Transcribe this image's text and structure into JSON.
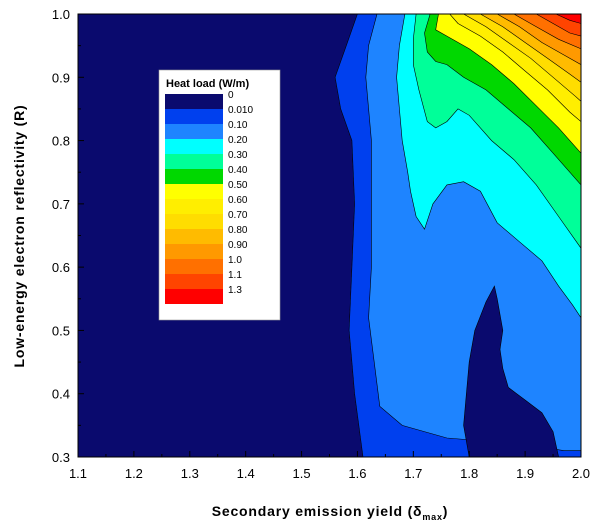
{
  "chart_data": {
    "type": "contour",
    "xlabel": "Secondary emission yield (δ",
    "xlabel_sub": "max",
    "xlabel_close": ")",
    "ylabel": "Low-energy electron reflectivity (R)",
    "xlim": [
      1.1,
      2.0
    ],
    "ylim": [
      0.3,
      1.0
    ],
    "x_ticks": [
      "1.1",
      "1.2",
      "1.3",
      "1.4",
      "1.5",
      "1.6",
      "1.7",
      "1.8",
      "1.9",
      "2.0"
    ],
    "y_ticks": [
      "0.3",
      "0.4",
      "0.5",
      "0.6",
      "0.7",
      "0.8",
      "0.9",
      "1.0"
    ],
    "legend": {
      "title": "Heat load (W/m)",
      "placement": "upper-left inside plot",
      "levels": [
        {
          "label": "0",
          "color": "#0a0a6e"
        },
        {
          "label": "0.010",
          "color": "#0040ee"
        },
        {
          "label": "0.10",
          "color": "#1e84ff"
        },
        {
          "label": "0.20",
          "color": "#00ffff"
        },
        {
          "label": "0.30",
          "color": "#00ff99"
        },
        {
          "label": "0.40",
          "color": "#00d800"
        },
        {
          "label": "0.50",
          "color": "#ffff00"
        },
        {
          "label": "0.60",
          "color": "#ffee00"
        },
        {
          "label": "0.70",
          "color": "#ffdd00"
        },
        {
          "label": "0.80",
          "color": "#ffbb00"
        },
        {
          "label": "0.90",
          "color": "#ff9900"
        },
        {
          "label": "1.0",
          "color": "#ff7000"
        },
        {
          "label": "1.1",
          "color": "#ff4400"
        },
        {
          "label": "1.3",
          "color": "#ff0000"
        }
      ]
    },
    "regions": [
      {
        "level": "0",
        "color": "#0a0a6e",
        "points": [
          [
            1.1,
            0.3
          ],
          [
            1.1,
            1.0
          ],
          [
            1.6,
            1.0
          ],
          [
            1.58,
            0.95
          ],
          [
            1.56,
            0.9
          ],
          [
            1.57,
            0.85
          ],
          [
            1.59,
            0.8
          ],
          [
            1.595,
            0.7
          ],
          [
            1.59,
            0.6
          ],
          [
            1.585,
            0.5
          ],
          [
            1.59,
            0.45
          ],
          [
            1.595,
            0.4
          ],
          [
            1.61,
            0.3
          ]
        ]
      },
      {
        "level": "0.010",
        "color": "#0040ee",
        "points": [
          [
            1.61,
            0.3
          ],
          [
            1.595,
            0.4
          ],
          [
            1.59,
            0.45
          ],
          [
            1.585,
            0.5
          ],
          [
            1.59,
            0.6
          ],
          [
            1.595,
            0.7
          ],
          [
            1.59,
            0.8
          ],
          [
            1.57,
            0.85
          ],
          [
            1.56,
            0.9
          ],
          [
            1.58,
            0.95
          ],
          [
            1.6,
            1.0
          ],
          [
            2.0,
            1.0
          ],
          [
            2.0,
            0.3
          ]
        ]
      },
      {
        "level": "0.10",
        "color": "#1e84ff",
        "points": [
          [
            1.635,
            1.0
          ],
          [
            1.62,
            0.95
          ],
          [
            1.615,
            0.9
          ],
          [
            1.62,
            0.85
          ],
          [
            1.625,
            0.8
          ],
          [
            1.625,
            0.7
          ],
          [
            1.625,
            0.6
          ],
          [
            1.62,
            0.52
          ],
          [
            1.63,
            0.45
          ],
          [
            1.64,
            0.38
          ],
          [
            1.68,
            0.35
          ],
          [
            1.76,
            0.33
          ],
          [
            1.9,
            0.32
          ],
          [
            1.97,
            0.31
          ],
          [
            2.0,
            0.31
          ],
          [
            2.0,
            1.0
          ]
        ]
      },
      {
        "level": "0",
        "color": "#0a0a6e",
        "points": [
          [
            1.8,
            0.3
          ],
          [
            1.79,
            0.35
          ],
          [
            1.795,
            0.4
          ],
          [
            1.8,
            0.45
          ],
          [
            1.81,
            0.5
          ],
          [
            1.83,
            0.545
          ],
          [
            1.845,
            0.57
          ],
          [
            1.85,
            0.55
          ],
          [
            1.86,
            0.5
          ],
          [
            1.855,
            0.47
          ],
          [
            1.86,
            0.44
          ],
          [
            1.87,
            0.41
          ],
          [
            1.885,
            0.4
          ],
          [
            1.9,
            0.39
          ],
          [
            1.93,
            0.37
          ],
          [
            1.95,
            0.34
          ],
          [
            1.96,
            0.3
          ]
        ]
      },
      {
        "level": "0.20",
        "color": "#00ffff",
        "points": [
          [
            1.685,
            1.0
          ],
          [
            1.675,
            0.95
          ],
          [
            1.67,
            0.9
          ],
          [
            1.675,
            0.85
          ],
          [
            1.68,
            0.8
          ],
          [
            1.69,
            0.75
          ],
          [
            1.695,
            0.72
          ],
          [
            1.705,
            0.68
          ],
          [
            1.72,
            0.66
          ],
          [
            1.735,
            0.7
          ],
          [
            1.76,
            0.73
          ],
          [
            1.79,
            0.735
          ],
          [
            1.82,
            0.72
          ],
          [
            1.85,
            0.67
          ],
          [
            1.89,
            0.64
          ],
          [
            1.93,
            0.61
          ],
          [
            1.96,
            0.57
          ],
          [
            1.985,
            0.54
          ],
          [
            2.0,
            0.52
          ],
          [
            2.0,
            1.0
          ]
        ]
      },
      {
        "level": "0.30",
        "color": "#00ff99",
        "points": [
          [
            1.705,
            1.0
          ],
          [
            1.7,
            0.96
          ],
          [
            1.7,
            0.92
          ],
          [
            1.71,
            0.88
          ],
          [
            1.725,
            0.83
          ],
          [
            1.74,
            0.82
          ],
          [
            1.76,
            0.83
          ],
          [
            1.78,
            0.85
          ],
          [
            1.8,
            0.84
          ],
          [
            1.84,
            0.8
          ],
          [
            1.88,
            0.77
          ],
          [
            1.92,
            0.73
          ],
          [
            1.96,
            0.68
          ],
          [
            2.0,
            0.63
          ],
          [
            2.0,
            1.0
          ]
        ]
      },
      {
        "level": "0.40",
        "color": "#00d800",
        "points": [
          [
            1.73,
            1.0
          ],
          [
            1.72,
            0.97
          ],
          [
            1.725,
            0.94
          ],
          [
            1.74,
            0.925
          ],
          [
            1.76,
            0.92
          ],
          [
            1.79,
            0.9
          ],
          [
            1.83,
            0.88
          ],
          [
            1.87,
            0.85
          ],
          [
            1.91,
            0.82
          ],
          [
            1.95,
            0.78
          ],
          [
            1.98,
            0.75
          ],
          [
            2.0,
            0.73
          ],
          [
            2.0,
            1.0
          ]
        ]
      },
      {
        "level": "0.50",
        "color": "#ffff00",
        "points": [
          [
            1.745,
            1.0
          ],
          [
            1.74,
            0.975
          ],
          [
            1.76,
            0.965
          ],
          [
            1.8,
            0.945
          ],
          [
            1.84,
            0.92
          ],
          [
            1.88,
            0.89
          ],
          [
            1.92,
            0.855
          ],
          [
            1.96,
            0.82
          ],
          [
            2.0,
            0.78
          ],
          [
            2.0,
            1.0
          ]
        ]
      },
      {
        "level": "0.60",
        "color": "#ffee00",
        "points": [
          [
            1.765,
            1.0
          ],
          [
            1.78,
            0.985
          ],
          [
            1.82,
            0.965
          ],
          [
            1.86,
            0.94
          ],
          [
            1.9,
            0.91
          ],
          [
            1.94,
            0.88
          ],
          [
            1.98,
            0.845
          ],
          [
            2.0,
            0.83
          ],
          [
            2.0,
            1.0
          ]
        ]
      },
      {
        "level": "0.70",
        "color": "#ffdd00",
        "points": [
          [
            1.79,
            1.0
          ],
          [
            1.83,
            0.98
          ],
          [
            1.87,
            0.955
          ],
          [
            1.91,
            0.93
          ],
          [
            1.95,
            0.9
          ],
          [
            1.99,
            0.87
          ],
          [
            2.0,
            0.862
          ],
          [
            2.0,
            1.0
          ]
        ]
      },
      {
        "level": "0.80",
        "color": "#ffbb00",
        "points": [
          [
            1.82,
            1.0
          ],
          [
            1.86,
            0.98
          ],
          [
            1.9,
            0.955
          ],
          [
            1.94,
            0.93
          ],
          [
            1.98,
            0.905
          ],
          [
            2.0,
            0.892
          ],
          [
            2.0,
            1.0
          ]
        ]
      },
      {
        "level": "0.90",
        "color": "#ff9900",
        "points": [
          [
            1.85,
            1.0
          ],
          [
            1.89,
            0.98
          ],
          [
            1.93,
            0.955
          ],
          [
            1.97,
            0.935
          ],
          [
            2.0,
            0.92
          ],
          [
            2.0,
            1.0
          ]
        ]
      },
      {
        "level": "1.0",
        "color": "#ff7000",
        "points": [
          [
            1.88,
            1.0
          ],
          [
            1.92,
            0.98
          ],
          [
            1.96,
            0.96
          ],
          [
            2.0,
            0.945
          ],
          [
            2.0,
            1.0
          ]
        ]
      },
      {
        "level": "1.1",
        "color": "#ff4400",
        "points": [
          [
            1.92,
            1.0
          ],
          [
            1.95,
            0.985
          ],
          [
            1.98,
            0.97
          ],
          [
            2.0,
            0.965
          ],
          [
            2.0,
            1.0
          ]
        ]
      },
      {
        "level": "1.3",
        "color": "#ff0000",
        "points": [
          [
            1.955,
            1.0
          ],
          [
            1.98,
            0.99
          ],
          [
            2.0,
            0.985
          ],
          [
            2.0,
            1.0
          ]
        ]
      }
    ]
  }
}
